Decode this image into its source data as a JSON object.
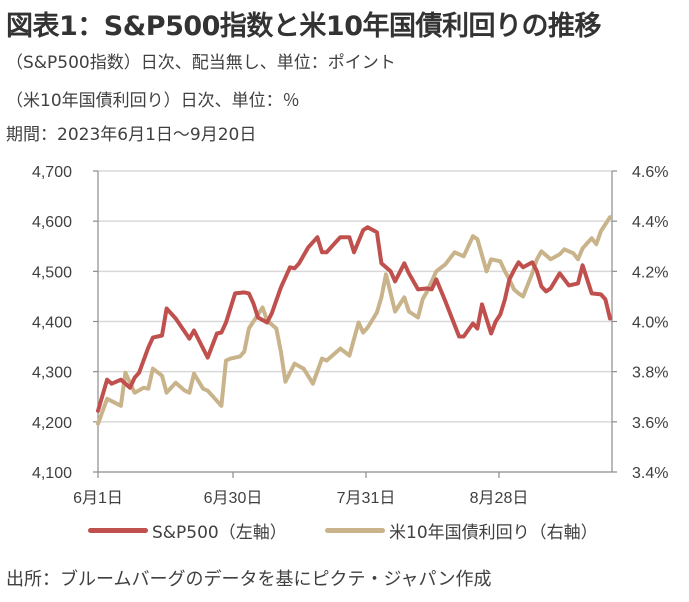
{
  "header": {
    "title": "図表1：S&P500指数と米10年国債利回りの推移",
    "subtitles": [
      "（S&P500指数）日次、配当無し、単位：ポイント",
      "（米10年国債利回り）日次、単位：％",
      "期間：2023年6月1日～9月20日"
    ]
  },
  "footer": {
    "source": "出所：ブルームバーグのデータを基にピクテ・ジャパン作成"
  },
  "chart_data": {
    "type": "line",
    "title": "図表1：S&P500指数と米10年国債利回りの推移",
    "x_unit": "days since 2023-06-01",
    "x_range": [
      0,
      111
    ],
    "x_ticks": [
      {
        "day": 0,
        "label": "6月1日"
      },
      {
        "day": 29,
        "label": "6月30日"
      },
      {
        "day": 60,
        "label": "7月31日"
      },
      {
        "day": 88,
        "label": "8月28日"
      }
    ],
    "y_left": {
      "label": "ポイント",
      "range": [
        4100,
        4700
      ],
      "ticks": [
        4100,
        4200,
        4300,
        4400,
        4500,
        4600,
        4700
      ],
      "tick_labels": [
        "4,100",
        "4,200",
        "4,300",
        "4,400",
        "4,500",
        "4,600",
        "4,700"
      ]
    },
    "y_right": {
      "label": "%",
      "range": [
        3.4,
        4.6
      ],
      "ticks": [
        3.4,
        3.6,
        3.8,
        4.0,
        4.2,
        4.4,
        4.6
      ],
      "tick_labels": [
        "3.4%",
        "3.6%",
        "3.8%",
        "4.0%",
        "4.2%",
        "4.4%",
        "4.6%"
      ]
    },
    "grid": true,
    "legend_position": "bottom",
    "series": [
      {
        "name": "S&P500（左軸）",
        "axis": "left",
        "color": "#c0504d",
        "points": [
          [
            0,
            4222
          ],
          [
            2,
            4284
          ],
          [
            3,
            4276
          ],
          [
            5,
            4284
          ],
          [
            7,
            4268
          ],
          [
            8,
            4288
          ],
          [
            9,
            4298
          ],
          [
            11,
            4348
          ],
          [
            12,
            4368
          ],
          [
            14,
            4372
          ],
          [
            15,
            4426
          ],
          [
            17,
            4406
          ],
          [
            20,
            4366
          ],
          [
            21,
            4382
          ],
          [
            24,
            4328
          ],
          [
            26,
            4376
          ],
          [
            27,
            4378
          ],
          [
            28,
            4398
          ],
          [
            30,
            4456
          ],
          [
            32,
            4458
          ],
          [
            33,
            4456
          ],
          [
            34,
            4436
          ],
          [
            35,
            4408
          ],
          [
            37,
            4398
          ],
          [
            38,
            4416
          ],
          [
            40,
            4468
          ],
          [
            42,
            4508
          ],
          [
            43,
            4506
          ],
          [
            44,
            4516
          ],
          [
            46,
            4548
          ],
          [
            48,
            4568
          ],
          [
            49,
            4538
          ],
          [
            50,
            4538
          ],
          [
            52,
            4558
          ],
          [
            53,
            4568
          ],
          [
            55,
            4568
          ],
          [
            56,
            4538
          ],
          [
            58,
            4582
          ],
          [
            59,
            4588
          ],
          [
            61,
            4578
          ],
          [
            62,
            4516
          ],
          [
            64,
            4500
          ],
          [
            65,
            4480
          ],
          [
            67,
            4516
          ],
          [
            68,
            4496
          ],
          [
            70,
            4464
          ],
          [
            72,
            4466
          ],
          [
            73,
            4464
          ],
          [
            74,
            4484
          ],
          [
            76,
            4440
          ],
          [
            79,
            4370
          ],
          [
            80,
            4370
          ],
          [
            82,
            4396
          ],
          [
            83,
            4386
          ],
          [
            84,
            4434
          ],
          [
            86,
            4376
          ],
          [
            87,
            4400
          ],
          [
            88,
            4414
          ],
          [
            89,
            4444
          ],
          [
            90,
            4484
          ],
          [
            91,
            4502
          ],
          [
            92,
            4518
          ],
          [
            93,
            4508
          ],
          [
            95,
            4518
          ],
          [
            96,
            4500
          ],
          [
            97,
            4470
          ],
          [
            98,
            4460
          ],
          [
            99,
            4466
          ],
          [
            101,
            4496
          ],
          [
            103,
            4472
          ],
          [
            105,
            4476
          ],
          [
            106,
            4512
          ],
          [
            108,
            4456
          ],
          [
            110,
            4454
          ],
          [
            111,
            4444
          ],
          [
            112,
            4406
          ]
        ]
      },
      {
        "name": "米10年国債利回り（右軸）",
        "axis": "right",
        "color": "#c9b38a",
        "points": [
          [
            0,
            3.592
          ],
          [
            2,
            3.692
          ],
          [
            5,
            3.664
          ],
          [
            6,
            3.796
          ],
          [
            8,
            3.716
          ],
          [
            10,
            3.736
          ],
          [
            11,
            3.732
          ],
          [
            12,
            3.812
          ],
          [
            14,
            3.784
          ],
          [
            15,
            3.716
          ],
          [
            17,
            3.756
          ],
          [
            19,
            3.724
          ],
          [
            20,
            3.716
          ],
          [
            21,
            3.792
          ],
          [
            23,
            3.732
          ],
          [
            24,
            3.724
          ],
          [
            27,
            3.664
          ],
          [
            28,
            3.844
          ],
          [
            29,
            3.852
          ],
          [
            31,
            3.86
          ],
          [
            32,
            3.88
          ],
          [
            33,
            3.972
          ],
          [
            35,
            4.028
          ],
          [
            36,
            4.056
          ],
          [
            37,
            4.004
          ],
          [
            39,
            3.972
          ],
          [
            40,
            3.88
          ],
          [
            41,
            3.76
          ],
          [
            43,
            3.832
          ],
          [
            45,
            3.812
          ],
          [
            47,
            3.752
          ],
          [
            49,
            3.852
          ],
          [
            50,
            3.844
          ],
          [
            52,
            3.876
          ],
          [
            53,
            3.892
          ],
          [
            55,
            3.864
          ],
          [
            57,
            3.996
          ],
          [
            58,
            3.956
          ],
          [
            59,
            3.976
          ],
          [
            61,
            4.036
          ],
          [
            62,
            4.096
          ],
          [
            63,
            4.188
          ],
          [
            65,
            4.04
          ],
          [
            67,
            4.096
          ],
          [
            68,
            4.04
          ],
          [
            70,
            4.016
          ],
          [
            71,
            4.088
          ],
          [
            72,
            4.12
          ],
          [
            74,
            4.2
          ],
          [
            76,
            4.228
          ],
          [
            78,
            4.276
          ],
          [
            80,
            4.26
          ],
          [
            82,
            4.34
          ],
          [
            83,
            4.328
          ],
          [
            85,
            4.2
          ],
          [
            86,
            4.248
          ],
          [
            88,
            4.24
          ],
          [
            89,
            4.2
          ],
          [
            90,
            4.168
          ],
          [
            91,
            4.128
          ],
          [
            92,
            4.112
          ],
          [
            93,
            4.1
          ],
          [
            95,
            4.192
          ],
          [
            96,
            4.248
          ],
          [
            97,
            4.28
          ],
          [
            99,
            4.248
          ],
          [
            101,
            4.268
          ],
          [
            102,
            4.288
          ],
          [
            104,
            4.272
          ],
          [
            105,
            4.248
          ],
          [
            106,
            4.292
          ],
          [
            108,
            4.332
          ],
          [
            109,
            4.308
          ],
          [
            110,
            4.36
          ],
          [
            112,
            4.416
          ]
        ]
      }
    ]
  },
  "legend": [
    {
      "label": "S&P500（左軸）",
      "color": "#c0504d"
    },
    {
      "label": "米10年国債利回り（右軸）",
      "color": "#c9b38a"
    }
  ]
}
